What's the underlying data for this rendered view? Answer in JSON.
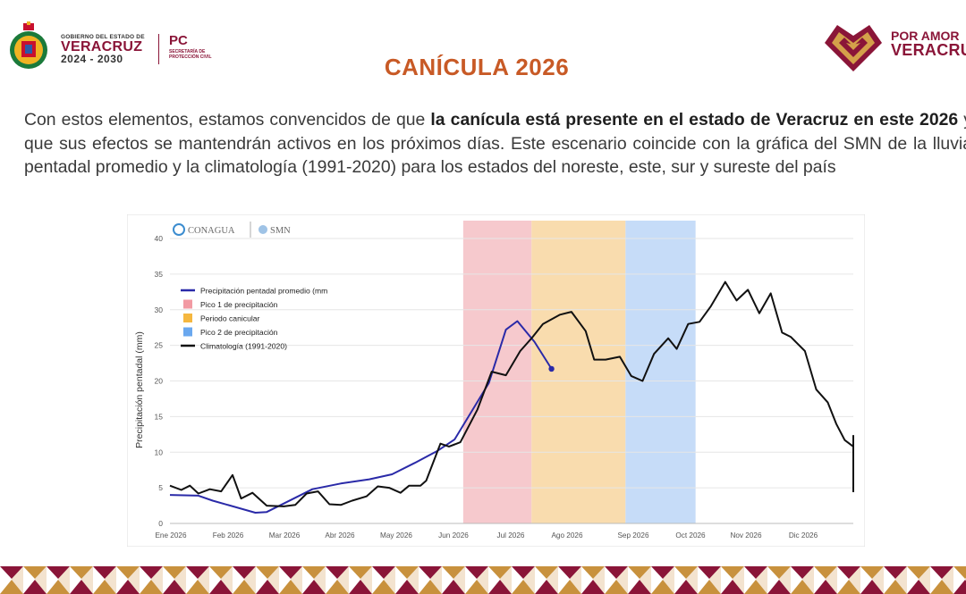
{
  "header": {
    "gov_small": "GOBIERNO DEL ESTADO DE",
    "gov_state": "VERACRUZ",
    "gov_years": "2024 - 2030",
    "pc_title": "PC",
    "pc_sub": "SECRETARÍA DE PROTECCIÓN CIVIL",
    "right_top": "POR AMOR",
    "right_bottom": "VERACRUZ"
  },
  "page": {
    "title": "CANÍCULA 2026",
    "text_1": "Con estos elementos, estamos convencidos de que ",
    "text_bold": "la canícula está presente en el estado de Veracruz en este 2026",
    "text_2": " y que sus efectos se mantendrán activos en los próximos días. Este escenario coincide con la gráfica del SMN de la lluvia pentadal promedio y la climatología (1991-2020) para los estados del noreste, este, sur y sureste del país"
  },
  "chart_logos": {
    "conagua": "CONAGUA",
    "smn": "SMN"
  },
  "colors": {
    "brand": "#8a1538",
    "title": "#c85a26",
    "peak1": "#f6c9cd",
    "canicula": "#f9dcae",
    "peak2": "#c6dcf8",
    "avg_line": "#2a2aa8",
    "clim_line": "#111111"
  },
  "chart_data": {
    "type": "line",
    "title": "",
    "xlabel": "",
    "ylabel": "Precipitación pentadal (mm)",
    "ylim": [
      0,
      40
    ],
    "yticks": [
      0,
      5,
      10,
      15,
      20,
      25,
      30,
      35,
      40
    ],
    "xlim": [
      0,
      12
    ],
    "xticks": [
      {
        "label": "Ene 2026",
        "x": 0
      },
      {
        "label": "Feb 2026",
        "x": 1
      },
      {
        "label": "Mar 2026",
        "x": 2
      },
      {
        "label": "Abr 2026",
        "x": 3
      },
      {
        "label": "May 2026",
        "x": 4
      },
      {
        "label": "Jun 2026",
        "x": 5
      },
      {
        "label": "Jul 2026",
        "x": 6
      },
      {
        "label": "Ago 2026",
        "x": 7
      },
      {
        "label": "Sep 2026",
        "x": 8
      },
      {
        "label": "Oct 2026",
        "x": 9
      },
      {
        "label": "Nov 2026",
        "x": 10
      },
      {
        "label": "Dic 2026",
        "x": 11
      }
    ],
    "bands": [
      {
        "name": "Pico 1 de precipitación",
        "from": 5.15,
        "to": 6.35,
        "color": "#f6c9cd"
      },
      {
        "name": "Periodo canicular",
        "from": 6.35,
        "to": 8.0,
        "color": "#f9dcae"
      },
      {
        "name": "Pico 2 de precipitación",
        "from": 8.0,
        "to": 9.23,
        "color": "#c6dcf8"
      }
    ],
    "series": [
      {
        "name": "Precipitación pentadal promedio (mm",
        "color": "#2a2aa8",
        "points": [
          [
            0,
            4
          ],
          [
            0.5,
            3.9
          ],
          [
            0.75,
            3.2
          ],
          [
            1.5,
            1.5
          ],
          [
            1.7,
            1.6
          ],
          [
            2.0,
            2.8
          ],
          [
            2.5,
            4.8
          ],
          [
            3.0,
            5.6
          ],
          [
            3.5,
            6.2
          ],
          [
            3.9,
            6.9
          ],
          [
            4.3,
            8.5
          ],
          [
            4.7,
            10.2
          ],
          [
            5.0,
            11.8
          ],
          [
            5.6,
            19.7
          ],
          [
            5.9,
            27.2
          ],
          [
            6.1,
            28.4
          ],
          [
            6.4,
            25.5
          ],
          [
            6.7,
            21.7
          ]
        ],
        "end_marker": true
      },
      {
        "name": "Climatología (1991-2020)",
        "color": "#111111",
        "points": [
          [
            0,
            5.3
          ],
          [
            0.2,
            4.7
          ],
          [
            0.35,
            5.3
          ],
          [
            0.5,
            4.2
          ],
          [
            0.7,
            4.8
          ],
          [
            0.9,
            4.5
          ],
          [
            1.1,
            6.8
          ],
          [
            1.25,
            3.5
          ],
          [
            1.45,
            4.3
          ],
          [
            1.7,
            2.5
          ],
          [
            2.0,
            2.4
          ],
          [
            2.2,
            2.6
          ],
          [
            2.4,
            4.2
          ],
          [
            2.6,
            4.5
          ],
          [
            2.8,
            2.7
          ],
          [
            3.0,
            2.6
          ],
          [
            3.2,
            3.2
          ],
          [
            3.45,
            3.8
          ],
          [
            3.65,
            5.2
          ],
          [
            3.85,
            5.0
          ],
          [
            4.05,
            4.3
          ],
          [
            4.2,
            5.3
          ],
          [
            4.4,
            5.3
          ],
          [
            4.5,
            6.0
          ],
          [
            4.75,
            11.2
          ],
          [
            4.9,
            10.8
          ],
          [
            5.1,
            11.4
          ],
          [
            5.4,
            16.0
          ],
          [
            5.65,
            21.3
          ],
          [
            5.9,
            20.8
          ],
          [
            6.15,
            24.2
          ],
          [
            6.35,
            26.0
          ],
          [
            6.55,
            28.0
          ],
          [
            6.85,
            29.3
          ],
          [
            7.05,
            29.7
          ],
          [
            7.3,
            27.0
          ],
          [
            7.45,
            23.0
          ],
          [
            7.65,
            23.0
          ],
          [
            7.9,
            23.4
          ],
          [
            8.1,
            20.7
          ],
          [
            8.3,
            20.0
          ],
          [
            8.5,
            23.8
          ],
          [
            8.75,
            26.0
          ],
          [
            8.9,
            24.5
          ],
          [
            9.1,
            28.0
          ],
          [
            9.3,
            28.3
          ],
          [
            9.5,
            30.5
          ],
          [
            9.75,
            33.9
          ],
          [
            9.95,
            31.3
          ],
          [
            10.15,
            32.8
          ],
          [
            10.35,
            29.5
          ],
          [
            10.55,
            32.3
          ],
          [
            10.75,
            26.8
          ],
          [
            10.9,
            26.2
          ],
          [
            11.15,
            24.2
          ],
          [
            11.35,
            18.8
          ],
          [
            11.55,
            17.0
          ],
          [
            11.7,
            14.0
          ],
          [
            11.85,
            11.7
          ],
          [
            12.0,
            10.8
          ]
        ]
      },
      {
        "name": "Climatología (1991-2020) tail",
        "color": "#111111",
        "points": []
      }
    ],
    "legend": [
      {
        "label": "Precipitación pentadal promedio (mm",
        "kind": "line",
        "color": "#2a2aa8"
      },
      {
        "label": "Pico 1 de precipitación",
        "kind": "box",
        "color": "#f29aa3"
      },
      {
        "label": "Periodo canicular",
        "kind": "box",
        "color": "#f5b73f"
      },
      {
        "label": "Pico 2 de precipitación",
        "kind": "box",
        "color": "#6aa8ef"
      },
      {
        "label": "Climatología (1991-2020)",
        "kind": "line",
        "color": "#111111"
      }
    ],
    "legend_position": "top-left",
    "grid": true
  }
}
